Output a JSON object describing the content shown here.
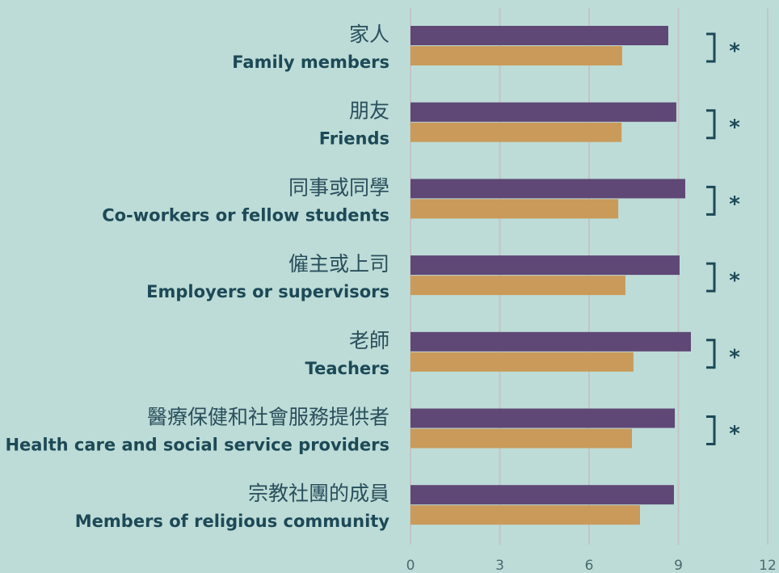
{
  "chart_data": {
    "type": "bar",
    "orientation": "horizontal",
    "categories": [
      {
        "zh": "家人",
        "en": "Family members"
      },
      {
        "zh": "朋友",
        "en": "Friends"
      },
      {
        "zh": "同事或同學",
        "en": "Co-workers or fellow students"
      },
      {
        "zh": "僱主或上司",
        "en": "Employers or supervisors"
      },
      {
        "zh": "老師",
        "en": "Teachers"
      },
      {
        "zh": "醫療保健和社會服務提供者",
        "en": "Health care and social service providers"
      },
      {
        "zh": "宗教社團的成員",
        "en": "Members of religious community"
      }
    ],
    "series": [
      {
        "color": "#5f4776",
        "values": [
          8.66,
          8.93,
          9.23,
          9.04,
          9.42,
          8.88,
          8.85
        ]
      },
      {
        "color": "#c99a5a",
        "values": [
          7.11,
          7.09,
          6.98,
          7.22,
          7.49,
          7.44,
          7.71
        ]
      }
    ],
    "significance": [
      "*",
      "*",
      "*",
      "*",
      "*",
      "*",
      null
    ],
    "xlim": [
      0,
      12
    ],
    "xticks": [
      0,
      3,
      6,
      9,
      12
    ],
    "grid": true
  }
}
